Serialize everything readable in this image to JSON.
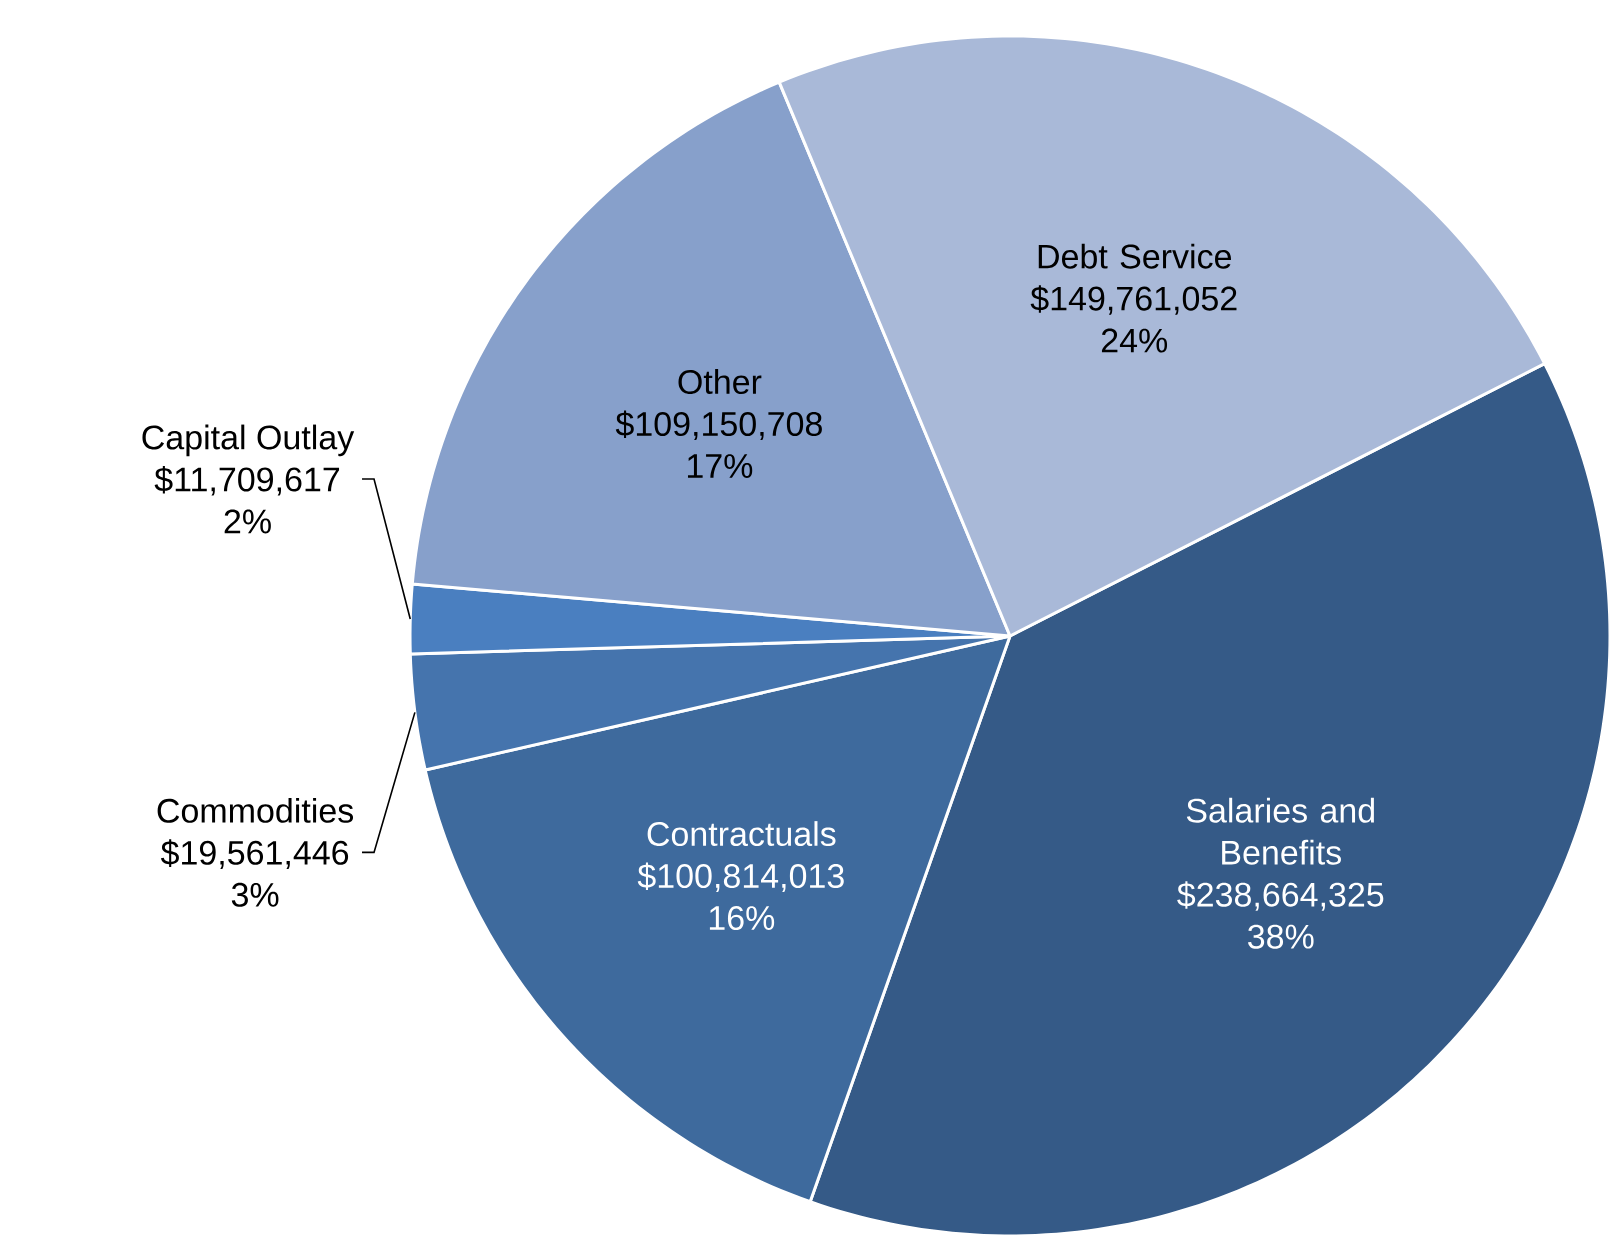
{
  "chart_data": {
    "type": "pie",
    "categories": [
      "Salaries and Benefits",
      "Contractuals",
      "Commodities",
      "Capital Outlay",
      "Other",
      "Debt Service"
    ],
    "values": [
      238664325,
      100814013,
      19561446,
      11709617,
      109150708,
      149761052
    ],
    "value_labels": [
      "$238,664,325",
      "$100,814,013",
      "$19,561,446",
      "$11,709,617",
      "$109,150,708",
      "$149,761,052"
    ],
    "colors": [
      "#355a87",
      "#3e6a9d",
      "#4574ad",
      "#4a7fc0",
      "#87a0cb",
      "#a9b9d8"
    ],
    "annotations": [
      "38%",
      "16%",
      "3%",
      "2%",
      "17%",
      "24%"
    ]
  }
}
